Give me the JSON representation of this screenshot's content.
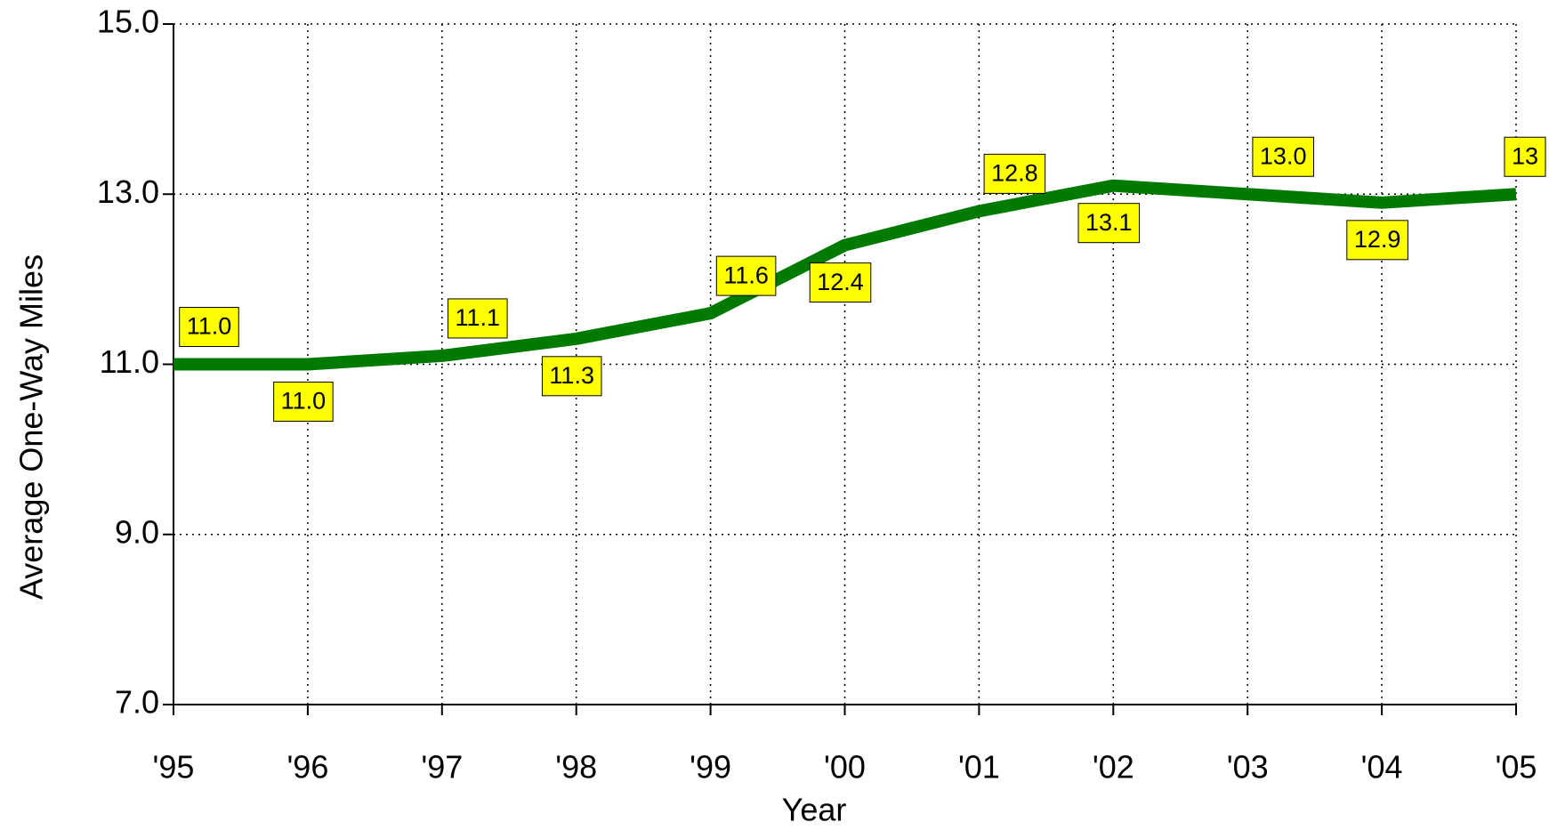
{
  "chart_data": {
    "type": "line",
    "x_label": "Year",
    "y_label": "Average One-Way Miles",
    "categories": [
      "'95",
      "'96",
      "'97",
      "'98",
      "'99",
      "'00",
      "'01",
      "'02",
      "'03",
      "'04",
      "'05"
    ],
    "series": [
      {
        "name": "Average One-Way Miles",
        "color": "#007a00",
        "values": [
          11.0,
          11.0,
          11.1,
          11.3,
          11.6,
          12.4,
          12.8,
          13.1,
          13.0,
          12.9,
          13.0
        ],
        "value_labels": [
          "11.0",
          "11.0",
          "11.1",
          "11.3",
          "11.6",
          "12.4",
          "12.8",
          "13.1",
          "13.0",
          "12.9",
          "13"
        ]
      }
    ],
    "ylim": [
      7,
      15
    ],
    "yticks": [
      {
        "value": 7,
        "label": "7.0"
      },
      {
        "value": 9,
        "label": "9.0"
      },
      {
        "value": 11,
        "label": "11.0"
      },
      {
        "value": 13,
        "label": "13.0"
      },
      {
        "value": 15,
        "label": "15.0"
      }
    ],
    "grid": true,
    "label_color": "#ffff00"
  }
}
